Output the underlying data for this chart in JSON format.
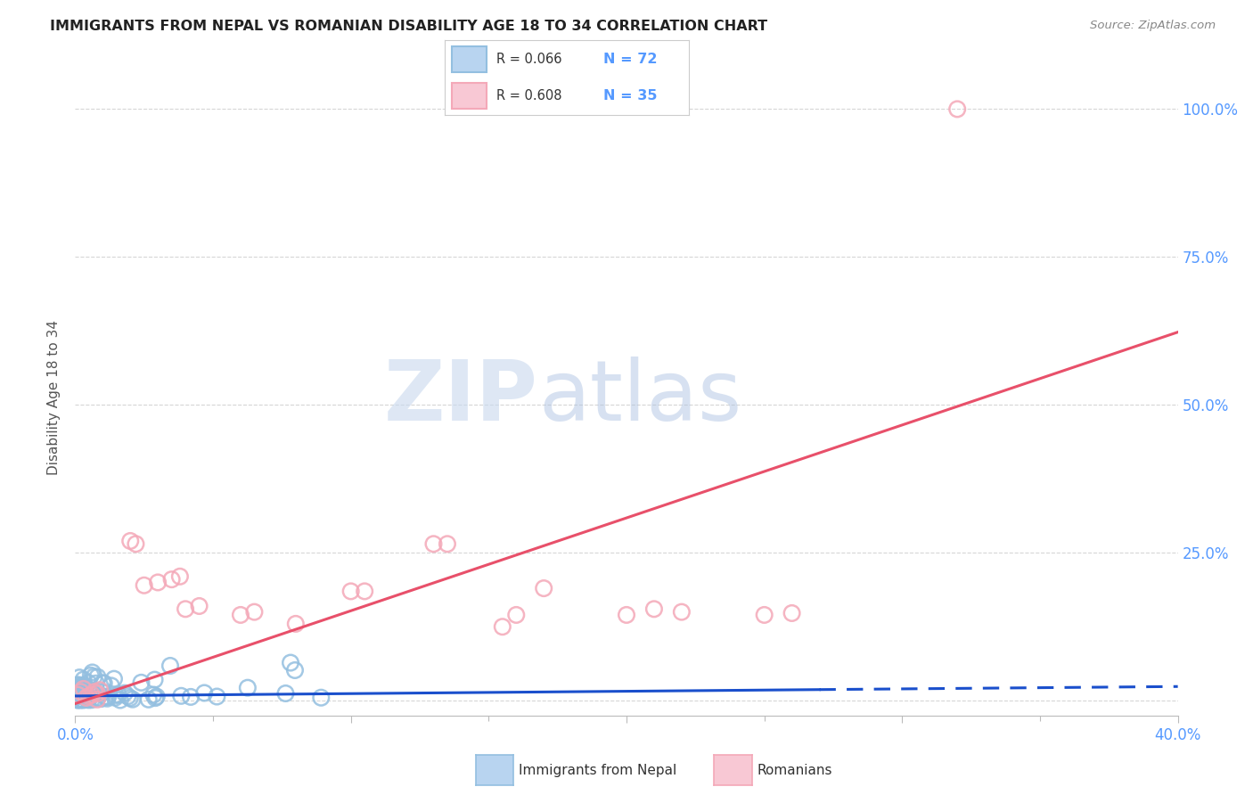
{
  "title": "IMMIGRANTS FROM NEPAL VS ROMANIAN DISABILITY AGE 18 TO 34 CORRELATION CHART",
  "source": "Source: ZipAtlas.com",
  "ylabel": "Disability Age 18 to 34",
  "watermark_zip": "ZIP",
  "watermark_atlas": "atlas",
  "xlim": [
    0.0,
    0.4
  ],
  "ylim": [
    -0.02,
    1.05
  ],
  "nepal_R": 0.066,
  "nepal_N": 72,
  "romanian_R": 0.608,
  "romanian_N": 35,
  "nepal_color": "#93bfe0",
  "romanian_color": "#f4a8b8",
  "nepal_line_color": "#1a4fcc",
  "romanian_line_color": "#e8506a",
  "background_color": "#ffffff",
  "grid_color": "#cccccc",
  "title_color": "#222222",
  "axis_label_color": "#555555",
  "ytick_color": "#5599ff",
  "xtick_color": "#5599ff",
  "legend_N_color": "#5599ff",
  "legend_border_color": "#cccccc",
  "nepal_legend_face": "#b8d4f0",
  "nepal_legend_edge": "#93bfe0",
  "romanian_legend_face": "#f8c8d4",
  "romanian_legend_edge": "#f4a8b8"
}
